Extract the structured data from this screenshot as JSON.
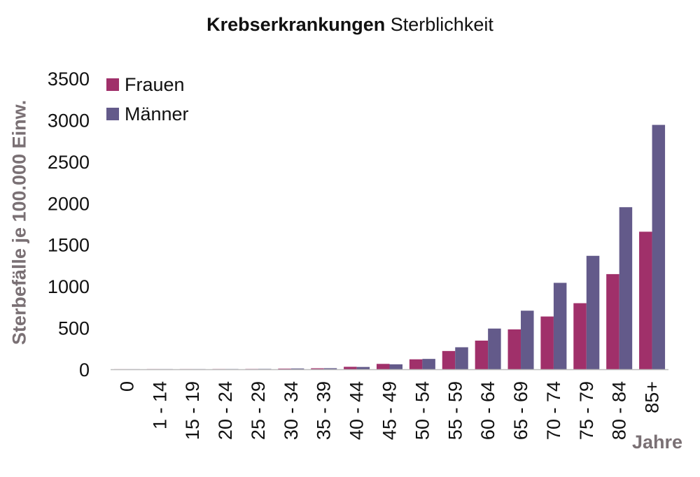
{
  "title_bold": "Krebserkrankungen",
  "title_rest": "Sterblichkeit",
  "colors": {
    "frauen": "#a0306a",
    "maenner": "#635a8a",
    "axis": "#bdbdbd",
    "label_gray": "#7a7074"
  },
  "chart_data": {
    "type": "bar",
    "title": "Krebserkrankungen Sterblichkeit",
    "ylabel": "Sterbefälle je 100.000 Einw.",
    "xlabel": "Jahre",
    "ylim": [
      0,
      3500
    ],
    "yticks": [
      0,
      500,
      1000,
      1500,
      2000,
      2500,
      3000,
      3500
    ],
    "grid": false,
    "legend": "top-left",
    "categories": [
      "0",
      "1 - 14",
      "15 - 19",
      "20 - 24",
      "25 - 29",
      "30 - 34",
      "35 - 39",
      "40 - 44",
      "45 - 49",
      "50 - 54",
      "55 - 59",
      "60 - 64",
      "65 - 69",
      "70 - 74",
      "75 - 79",
      "80 - 84",
      "85+"
    ],
    "series": [
      {
        "name": "Frauen",
        "values": [
          1,
          2,
          2,
          3,
          4,
          8,
          12,
          30,
          65,
          120,
          220,
          345,
          480,
          635,
          795,
          1145,
          1655
        ]
      },
      {
        "name": "Männer",
        "values": [
          1,
          2,
          2,
          3,
          5,
          10,
          13,
          28,
          60,
          125,
          265,
          490,
          705,
          1040,
          1365,
          1950,
          2940
        ]
      }
    ]
  }
}
